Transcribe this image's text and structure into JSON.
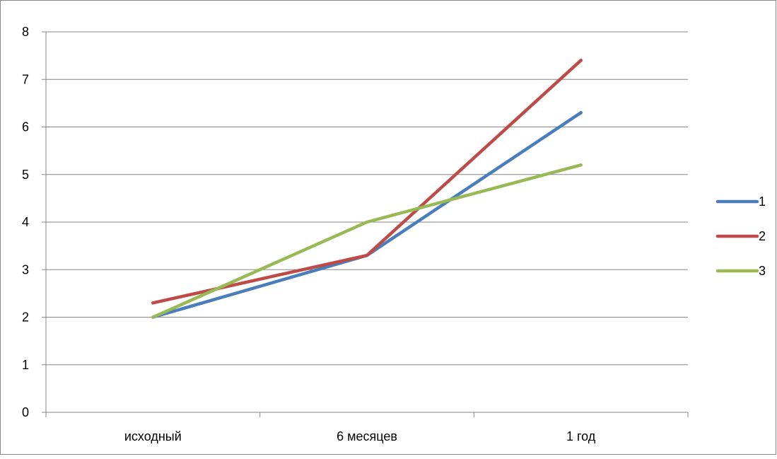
{
  "chart_data": {
    "type": "line",
    "categories": [
      "исходный",
      "6 месяцев",
      "1 год"
    ],
    "series": [
      {
        "name": "1",
        "values": [
          2.0,
          3.3,
          6.3
        ],
        "color": "#4a7ebb"
      },
      {
        "name": "2",
        "values": [
          2.3,
          3.3,
          7.4
        ],
        "color": "#be4b48"
      },
      {
        "name": "3",
        "values": [
          2.0,
          4.0,
          5.2
        ],
        "color": "#98b954"
      }
    ],
    "y_ticks": [
      "0",
      "1",
      "2",
      "3",
      "4",
      "5",
      "6",
      "7",
      "8"
    ],
    "ylim": [
      0,
      8
    ],
    "grid": "horizontal",
    "legend_position": "right",
    "axis_color": "#868686",
    "grid_color": "#868686"
  }
}
